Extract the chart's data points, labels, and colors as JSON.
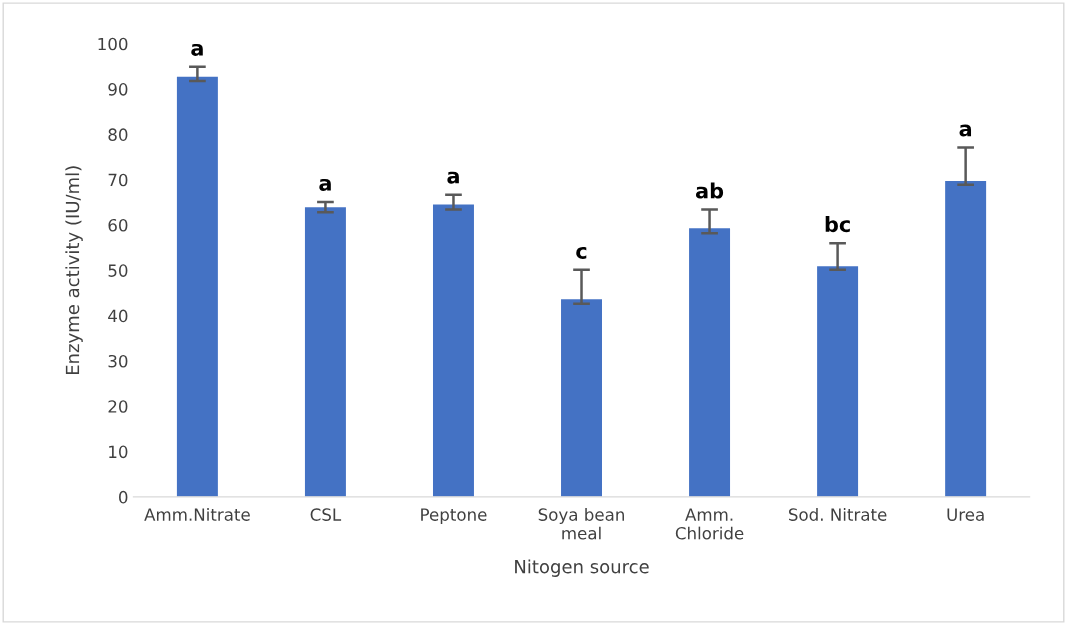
{
  "chart_data": {
    "type": "bar",
    "xlabel": "Nitogen source",
    "ylabel": "Enzyme activity (IU/ml)",
    "categories": [
      "Amm.Nitrate",
      "CSL",
      "Peptone",
      "Soya bean\nmeal",
      "Amm.\nChloride",
      "Sod. Nitrate",
      "Urea"
    ],
    "values": [
      92.7,
      63.9,
      64.5,
      43.6,
      59.3,
      50.9,
      69.7
    ],
    "errors": [
      [
        91.8,
        94.9
      ],
      [
        62.8,
        65.1
      ],
      [
        63.4,
        66.7
      ],
      [
        42.6,
        50.1
      ],
      [
        58.2,
        63.4
      ],
      [
        50.1,
        56.0
      ],
      [
        68.9,
        77.1
      ]
    ],
    "color": "#4472c4",
    "ylim": [
      0,
      100
    ],
    "yticks": [
      0,
      10,
      20,
      30,
      40,
      50,
      60,
      70,
      80,
      90,
      100
    ],
    "grid": false,
    "legend": false,
    "annotations": [
      "a",
      "a",
      "a",
      "c",
      "ab",
      "bc",
      "a"
    ]
  }
}
